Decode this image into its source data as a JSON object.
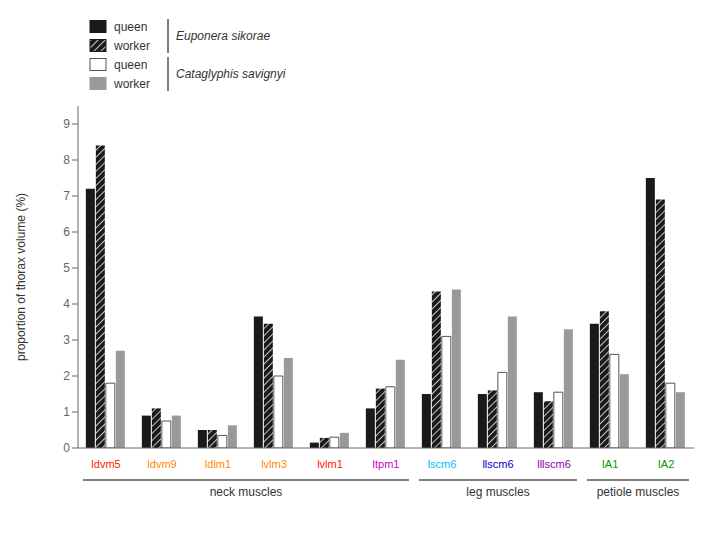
{
  "chart_data": {
    "type": "bar",
    "categories": [
      "ldvm5",
      "ldvm9",
      "ldlm1",
      "lvlm3",
      "lvlm1",
      "ltpm1",
      "lscm6",
      "llscm6",
      "lllscm6",
      "IA1",
      "IA2"
    ],
    "category_colors": [
      "#ff2200",
      "#ff8800",
      "#ff8800",
      "#ff8800",
      "#ff2200",
      "#cc00cc",
      "#00bbff",
      "#0000cc",
      "#8800aa",
      "#009900",
      "#009900"
    ],
    "category_groups": [
      {
        "label": "neck muscles",
        "categories": [
          "ldvm5",
          "ldvm9",
          "ldlm1",
          "lvlm3",
          "lvlm1",
          "ltpm1"
        ]
      },
      {
        "label": "leg muscles",
        "categories": [
          "lscm6",
          "llscm6",
          "lllscm6"
        ]
      },
      {
        "label": "petiole muscles",
        "categories": [
          "IA1",
          "IA2"
        ]
      }
    ],
    "ylabel": "proportion of thorax volume (%)",
    "ylim": [
      0,
      9.5
    ],
    "yticks": [
      0,
      1,
      2,
      3,
      4,
      5,
      6,
      7,
      8,
      9
    ],
    "grid": false,
    "legend": "upper left",
    "series": [
      {
        "name": "queen",
        "group": "Euponera sikorae",
        "color": "#1a1a1a",
        "values": [
          7.2,
          0.9,
          0.5,
          3.65,
          0.15,
          1.1,
          1.5,
          1.5,
          1.55,
          3.45,
          7.5
        ]
      },
      {
        "name": "worker",
        "group": "Euponera sikorae",
        "color": "#1a1a1a",
        "values": [
          8.4,
          1.1,
          0.5,
          3.45,
          0.28,
          1.65,
          4.35,
          1.6,
          1.3,
          3.8,
          6.9
        ]
      },
      {
        "name": "queen",
        "group": "Cataglyphis savignyi",
        "color": "#ffffff",
        "values": [
          1.8,
          0.75,
          0.35,
          2.0,
          0.3,
          1.7,
          3.1,
          2.1,
          1.55,
          2.6,
          1.8
        ]
      },
      {
        "name": "worker",
        "group": "Cataglyphis savignyi",
        "color": "#999999",
        "values": [
          2.7,
          0.9,
          0.63,
          2.5,
          0.42,
          2.45,
          4.4,
          3.65,
          3.3,
          2.05,
          1.55
        ]
      }
    ]
  }
}
